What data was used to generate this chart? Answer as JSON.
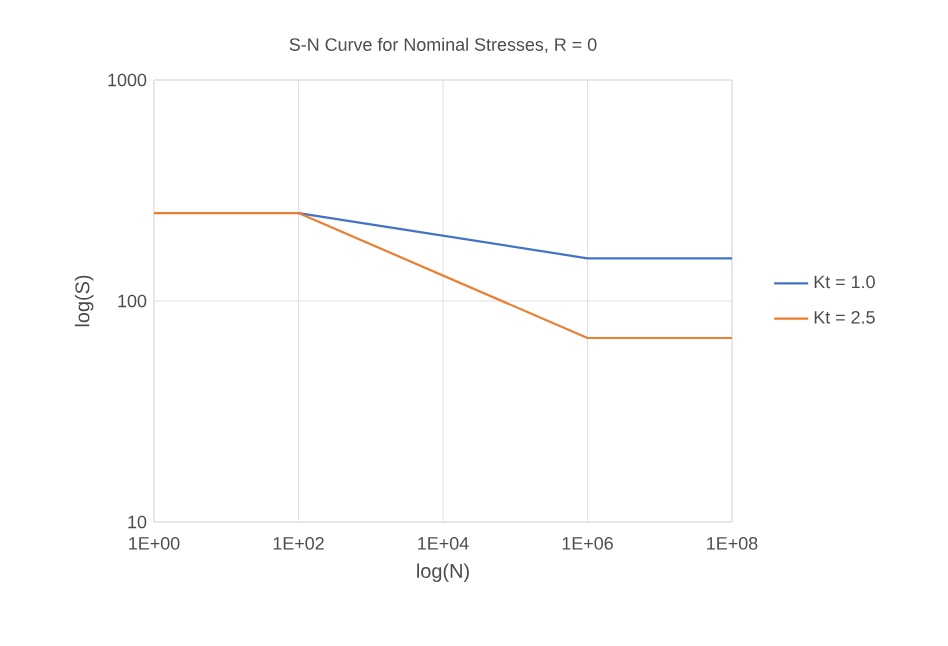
{
  "chart_data": {
    "type": "line",
    "title": "S-N Curve for Nominal Stresses, R = 0",
    "xlabel": "log(N)",
    "ylabel": "log(S)",
    "log": "xy",
    "grid": true,
    "legend": "right",
    "marker": "none",
    "line_style": "solid",
    "xlim": [
      1,
      100000000
    ],
    "ylim": [
      10,
      1000
    ],
    "xticks": [
      {
        "value": 1,
        "label": "1E+00"
      },
      {
        "value": 100,
        "label": "1E+02"
      },
      {
        "value": 10000,
        "label": "1E+04"
      },
      {
        "value": 1000000,
        "label": "1E+06"
      },
      {
        "value": 100000000,
        "label": "1E+08"
      }
    ],
    "yticks": [
      10,
      100,
      1000
    ],
    "x": [
      1,
      100,
      1000000,
      100000000
    ],
    "series": [
      {
        "name": "Kt = 1.0",
        "color": "#4472c4",
        "values": [
          null,
          250,
          156,
          156
        ]
      },
      {
        "name": "Kt = 2.5",
        "color": "#ed7d31",
        "values": [
          250,
          250,
          68,
          68
        ]
      }
    ]
  }
}
